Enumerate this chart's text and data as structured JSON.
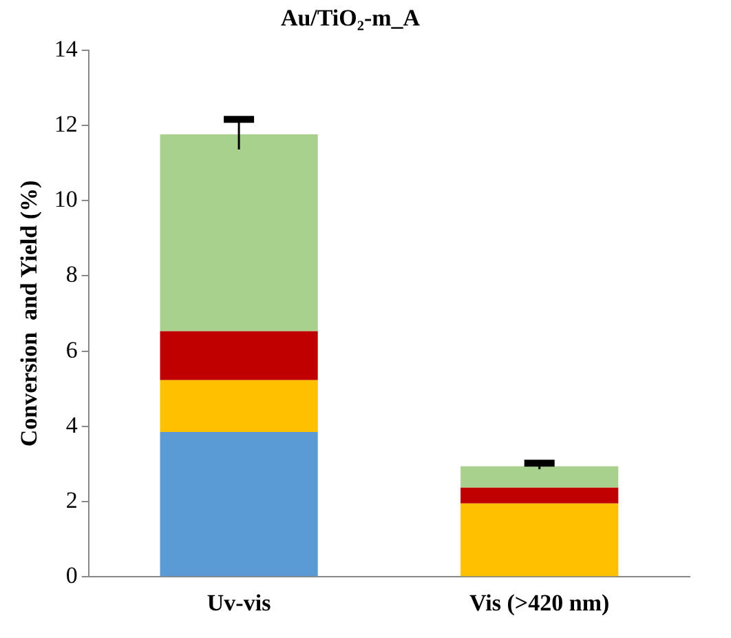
{
  "chart_data": {
    "type": "bar",
    "title": "Au/TiO₂-m_A",
    "ylabel": "Conversion  and Yield (%)",
    "categories": [
      "Uv-vis",
      "Vis (>420 nm)"
    ],
    "stacked": true,
    "ylim": [
      0,
      14
    ],
    "yticks": [
      0,
      2,
      4,
      6,
      8,
      10,
      12,
      14
    ],
    "grid": false,
    "legend": false,
    "series": [
      {
        "color": "#5b9bd5",
        "values": [
          3.85,
          0
        ]
      },
      {
        "color": "#ffc000",
        "values": [
          1.38,
          1.95
        ]
      },
      {
        "color": "#c00000",
        "values": [
          1.3,
          0.42
        ]
      },
      {
        "color": "#a9d18e",
        "values": [
          5.23,
          0.57
        ],
        "errors": [
          0.4,
          0.08
        ]
      }
    ]
  }
}
